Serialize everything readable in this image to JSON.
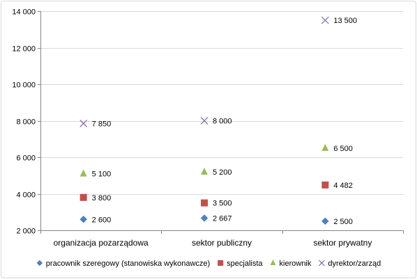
{
  "chart_data": {
    "type": "scatter",
    "categories": [
      "organizacja pozarządowa",
      "sektor publiczny",
      "sektor prywatny"
    ],
    "ylim": [
      2000,
      14000
    ],
    "yticks": [
      2000,
      4000,
      6000,
      8000,
      10000,
      12000,
      14000
    ],
    "ytick_labels": [
      "2 000",
      "4 000",
      "6 000",
      "8 000",
      "10 000",
      "12 000",
      "14 000"
    ],
    "grid": true,
    "legend_position": "bottom",
    "series": [
      {
        "name": "pracownik szeregowy (stanowiska wykonawcze)",
        "marker": "diamond",
        "color": "#4f81bd",
        "values": [
          2600,
          2667,
          2500
        ],
        "labels": [
          "2 600",
          "2 667",
          "2 500"
        ]
      },
      {
        "name": "specjalista",
        "marker": "square",
        "color": "#c0504d",
        "values": [
          3800,
          3500,
          4482
        ],
        "labels": [
          "3 800",
          "3 500",
          "4 482"
        ]
      },
      {
        "name": "kierownik",
        "marker": "triangle",
        "color": "#9bbb59",
        "values": [
          5100,
          5200,
          6500
        ],
        "labels": [
          "5 100",
          "5 200",
          "6 500"
        ]
      },
      {
        "name": "dyrektor/zarząd",
        "marker": "x",
        "color": "#8064a2",
        "values": [
          7850,
          8000,
          13500
        ],
        "labels": [
          "7 850",
          "8 000",
          "13 500"
        ]
      }
    ]
  }
}
